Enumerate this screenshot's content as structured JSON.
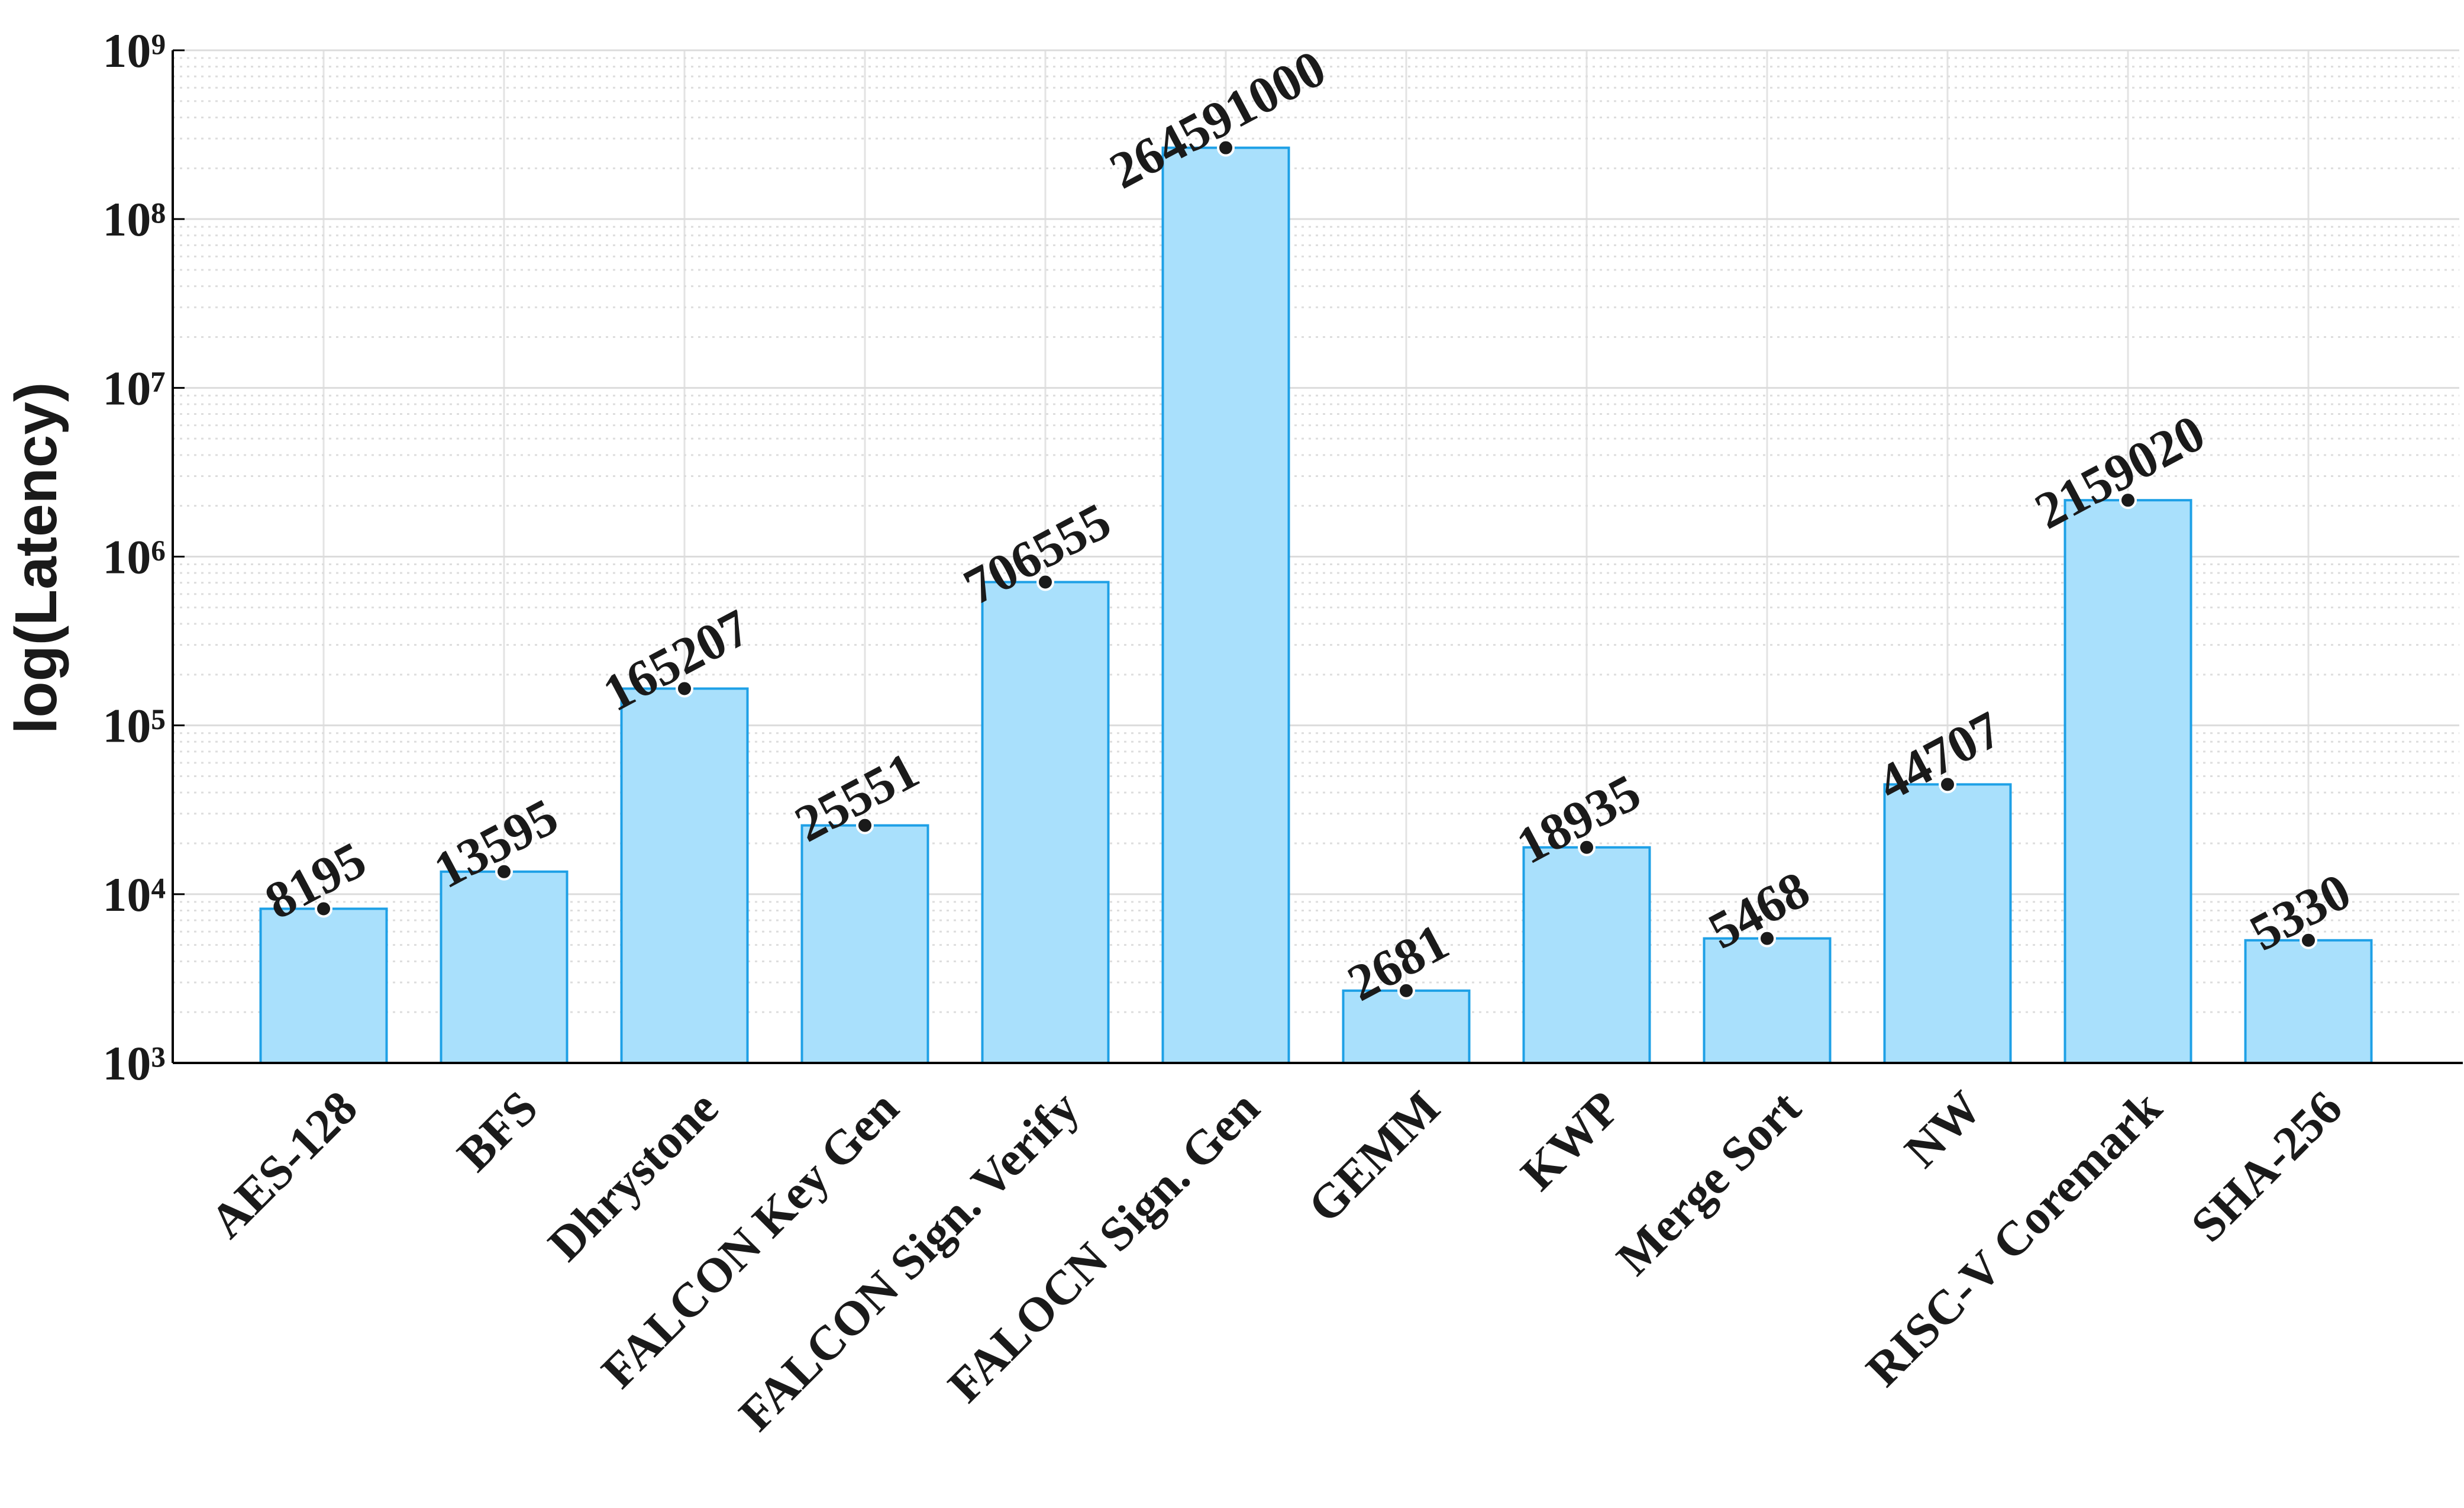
{
  "chart_data": {
    "type": "bar",
    "ylabel": "log(Latency)",
    "categories": [
      "AES-128",
      "BFS",
      "Dhrystone",
      "FALCON Key Gen",
      "FALCON Sign. Verify",
      "FALOCN Sign. Gen",
      "GEMM",
      "KWP",
      "Merge Sort",
      "NW",
      "RISC-V Coremark",
      "SHA-256"
    ],
    "values": [
      8195,
      13595,
      165207,
      25551,
      706555,
      264591000,
      2681,
      18935,
      5468,
      44707,
      2159020,
      5330
    ],
    "color": "#a9e0fc",
    "edge_color": "#1ea0e6",
    "ylim": [
      1000,
      1000000000
    ],
    "log_scale": true,
    "yticks": [
      {
        "value": 1000,
        "label": "10³"
      },
      {
        "value": 10000,
        "label": "10⁴"
      },
      {
        "value": 100000,
        "label": "10⁵"
      },
      {
        "value": 1000000,
        "label": "10⁶"
      },
      {
        "value": 10000000,
        "label": "10⁷"
      },
      {
        "value": 100000000,
        "label": "10⁸"
      },
      {
        "value": 1000000000,
        "label": "10⁹"
      }
    ],
    "grid": true
  }
}
